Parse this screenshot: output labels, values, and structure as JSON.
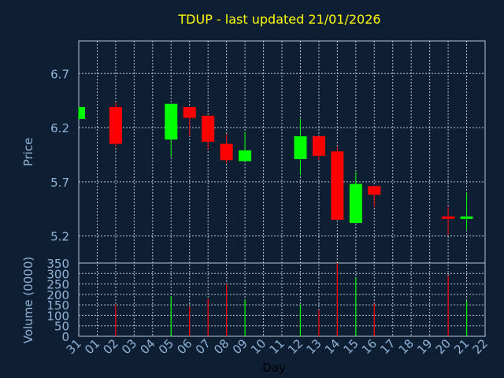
{
  "title": "TDUP - last updated 21/01/2026",
  "colors": {
    "background": "#0f1f33",
    "title": "#ffff00",
    "axis_text": "#8fb3d9",
    "grid": "#b8c4d4",
    "up": "#00ff00",
    "down": "#ff0000"
  },
  "chart_data": [
    {
      "type": "candlestick",
      "ylabel": "Price",
      "ylim": [
        4.95,
        7.0
      ],
      "yticks": [
        "5.2",
        "5.7",
        "6.2",
        "6.7"
      ],
      "xticks": [
        "31",
        "01",
        "02",
        "03",
        "04",
        "05",
        "06",
        "07",
        "08",
        "09",
        "10",
        "11",
        "12",
        "13",
        "14",
        "15",
        "16",
        "17",
        "18",
        "19",
        "20",
        "21",
        "22"
      ],
      "grid": true,
      "candles": [
        {
          "day": "31",
          "open": 6.28,
          "high": 6.39,
          "low": 6.28,
          "close": 6.39
        },
        {
          "day": "02",
          "open": 6.39,
          "high": 6.43,
          "low": 6.02,
          "close": 6.05
        },
        {
          "day": "05",
          "open": 6.09,
          "high": 6.42,
          "low": 5.93,
          "close": 6.42
        },
        {
          "day": "06",
          "open": 6.39,
          "high": 6.39,
          "low": 6.12,
          "close": 6.29
        },
        {
          "day": "07",
          "open": 6.31,
          "high": 6.31,
          "low": 6.0,
          "close": 6.07
        },
        {
          "day": "08",
          "open": 6.05,
          "high": 6.14,
          "low": 5.87,
          "close": 5.9
        },
        {
          "day": "09",
          "open": 5.89,
          "high": 6.16,
          "low": 5.89,
          "close": 5.99
        },
        {
          "day": "12",
          "open": 5.91,
          "high": 6.28,
          "low": 5.76,
          "close": 6.12
        },
        {
          "day": "13",
          "open": 6.12,
          "high": 6.12,
          "low": 5.9,
          "close": 5.94
        },
        {
          "day": "14",
          "open": 5.98,
          "high": 6.02,
          "low": 5.35,
          "close": 5.35
        },
        {
          "day": "15",
          "open": 5.32,
          "high": 5.79,
          "low": 5.32,
          "close": 5.68
        },
        {
          "day": "16",
          "open": 5.66,
          "high": 5.66,
          "low": 5.47,
          "close": 5.58
        },
        {
          "day": "20",
          "open": 5.38,
          "high": 5.47,
          "low": 5.21,
          "close": 5.36
        },
        {
          "day": "21",
          "open": 5.36,
          "high": 5.6,
          "low": 5.26,
          "close": 5.38
        }
      ]
    },
    {
      "type": "bar",
      "ylabel": "Volume (0000)",
      "xlabel": "Day",
      "ylim": [
        0,
        350
      ],
      "yticks": [
        "0",
        "50",
        "100",
        "150",
        "200",
        "250",
        "300",
        "350"
      ],
      "grid": true,
      "bars": [
        {
          "day": "02",
          "value": 150,
          "direction": "down"
        },
        {
          "day": "05",
          "value": 190,
          "direction": "up"
        },
        {
          "day": "06",
          "value": 145,
          "direction": "down"
        },
        {
          "day": "07",
          "value": 180,
          "direction": "down"
        },
        {
          "day": "08",
          "value": 250,
          "direction": "down"
        },
        {
          "day": "09",
          "value": 175,
          "direction": "up"
        },
        {
          "day": "12",
          "value": 150,
          "direction": "up"
        },
        {
          "day": "13",
          "value": 125,
          "direction": "down"
        },
        {
          "day": "14",
          "value": 350,
          "direction": "down"
        },
        {
          "day": "15",
          "value": 280,
          "direction": "up"
        },
        {
          "day": "16",
          "value": 155,
          "direction": "down"
        },
        {
          "day": "20",
          "value": 290,
          "direction": "down"
        },
        {
          "day": "21",
          "value": 170,
          "direction": "up"
        }
      ]
    }
  ]
}
